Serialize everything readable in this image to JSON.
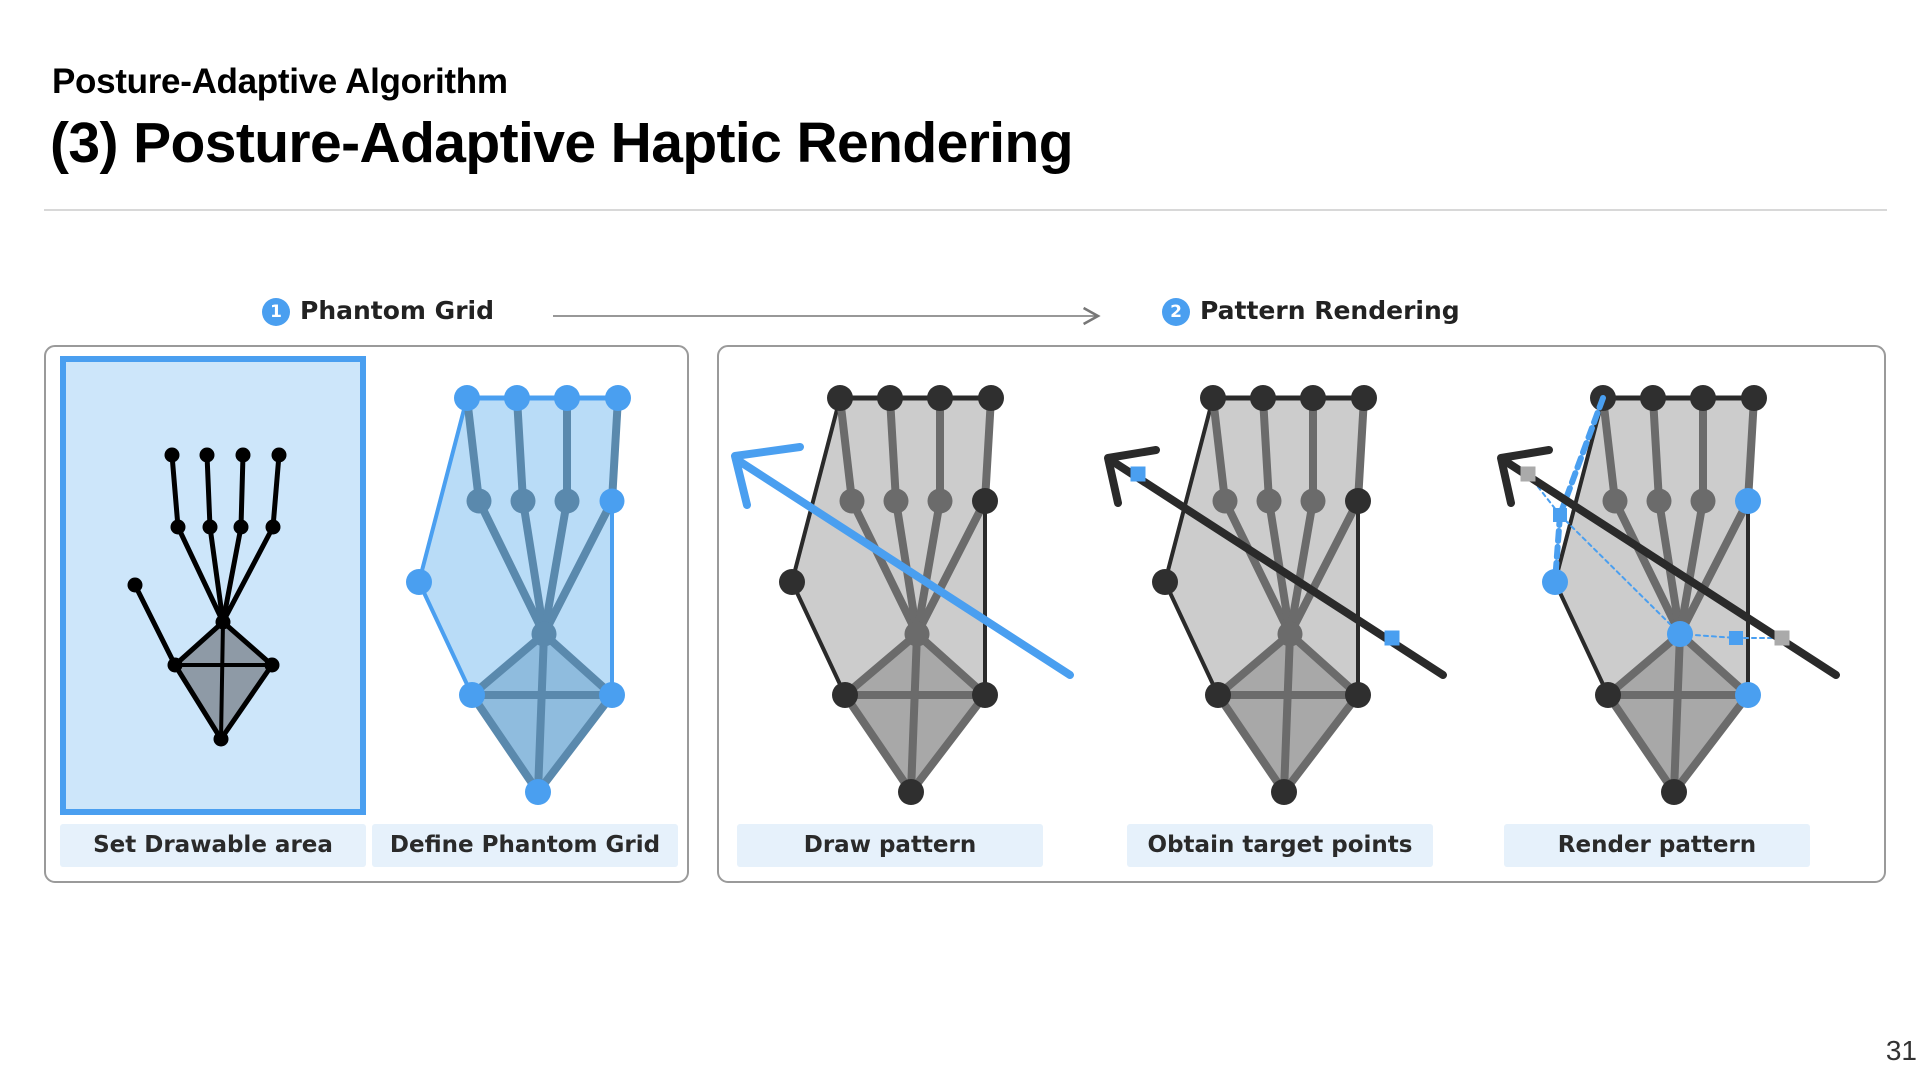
{
  "header": {
    "subtitle": "Posture-Adaptive Algorithm",
    "title": "(3) Posture-Adaptive Haptic Rendering"
  },
  "steps": [
    {
      "number": "1",
      "label": "Phantom Grid"
    },
    {
      "number": "2",
      "label": "Pattern Rendering"
    }
  ],
  "panels": [
    {
      "caption": "Set Drawable area"
    },
    {
      "caption": "Define Phantom Grid"
    },
    {
      "caption": "Draw pattern"
    },
    {
      "caption": "Obtain target points"
    },
    {
      "caption": "Render pattern"
    }
  ],
  "colors": {
    "accent_blue": "#4a9ff0",
    "area_fill": "#cde6fa",
    "hand_fill": "#cccccc",
    "joint_dark": "#2f2f2f",
    "target_gray": "#aaaaaa"
  },
  "page_number": "31"
}
